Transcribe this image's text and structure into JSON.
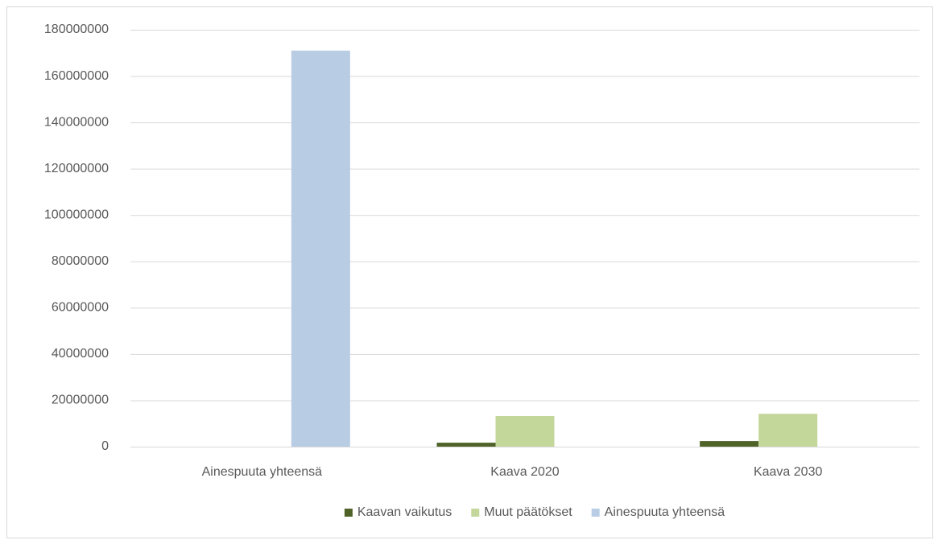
{
  "chart_data": {
    "type": "bar",
    "categories": [
      "Ainespuuta yhteensä",
      "Kaava 2020",
      "Kaava 2030"
    ],
    "series": [
      {
        "name": "Kaavan vaikutus",
        "color": "#4f6228",
        "values": [
          null,
          1700000,
          2400000
        ]
      },
      {
        "name": "Muut päätökset",
        "color": "#c4d79b",
        "values": [
          null,
          13200000,
          14200000
        ]
      },
      {
        "name": "Ainespuuta yhteensä",
        "color": "#b8cce4",
        "values": [
          171000000,
          null,
          null
        ]
      }
    ],
    "ylim": [
      0,
      180000000
    ],
    "yticks": [
      0,
      20000000,
      40000000,
      60000000,
      80000000,
      100000000,
      120000000,
      140000000,
      160000000,
      180000000
    ],
    "grid": true,
    "legend": "bottom"
  }
}
